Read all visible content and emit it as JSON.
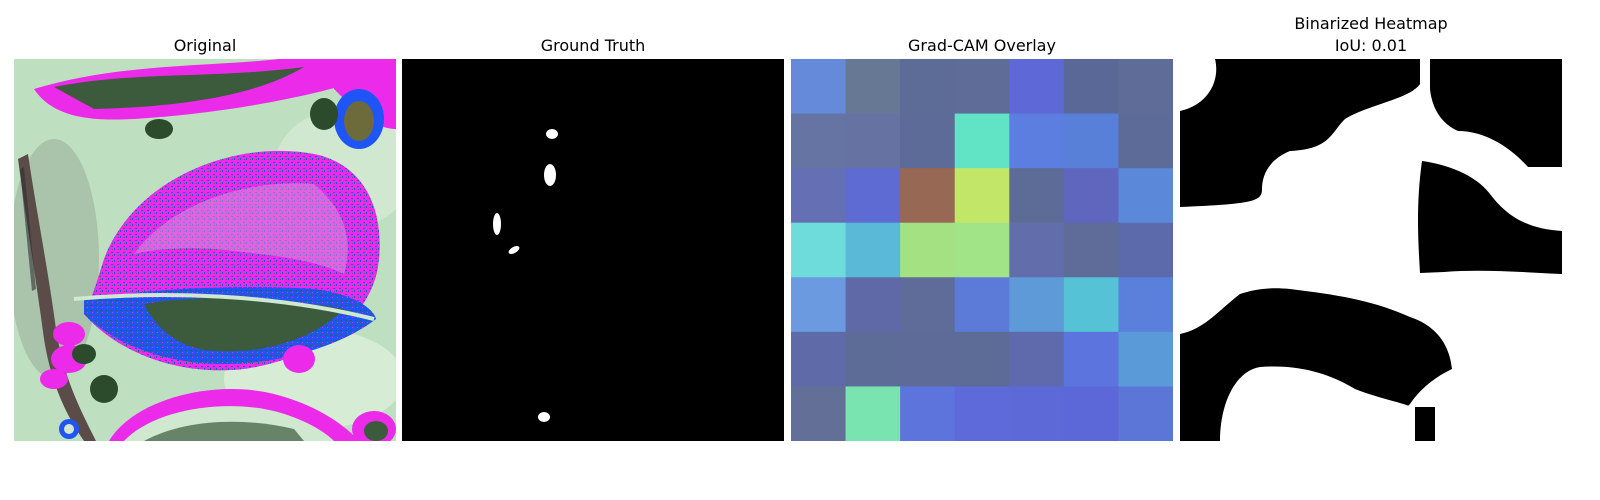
{
  "panels": [
    {
      "title": "Original"
    },
    {
      "title": "Ground Truth"
    },
    {
      "title": "Grad-CAM Overlay"
    },
    {
      "title": "Binarized Heatmap",
      "subtitle": "IoU: 0.01"
    }
  ],
  "gradcam": {
    "rows": 7,
    "cols": 7,
    "colors": [
      [
        "#648ad9",
        "#677894",
        "#5d6b97",
        "#5f6c98",
        "#5e68d7",
        "#5a6898",
        "#5f6c98"
      ],
      [
        "#6674a3",
        "#6673a2",
        "#5d6b98",
        "#61e3c5",
        "#5b7ee0",
        "#5880d9",
        "#5d6b98"
      ],
      [
        "#6570b4",
        "#5d6bd3",
        "#976853",
        "#c2e667",
        "#5d6b97",
        "#5e66bd",
        "#5b88d9"
      ],
      [
        "#6ddcda",
        "#5ab9d7",
        "#a3e183",
        "#a1e487",
        "#626dac",
        "#5f6b98",
        "#5c6aac"
      ],
      [
        "#6b9ae0",
        "#5f69a8",
        "#5f6b98",
        "#5c7ad8",
        "#5e99d8",
        "#56c2d6",
        "#5b80dc"
      ],
      [
        "#5f6aa9",
        "#5d6b97",
        "#5e6b99",
        "#5d6b97",
        "#5e6aab",
        "#5c75de",
        "#5b9ad9"
      ],
      [
        "#646f97",
        "#7ae4b0",
        "#5c74dc",
        "#5e6ad9",
        "#5c69d7",
        "#5d68d8",
        "#5c76d7"
      ]
    ]
  },
  "colors": {
    "leaf_magenta": "#ec2ae9",
    "leaf_blue": "#1f55f5",
    "leaf_green_dark": "#3c5a3c",
    "background_pale": "#bfe0c0",
    "mask_black": "#000000",
    "mask_white": "#ffffff"
  }
}
